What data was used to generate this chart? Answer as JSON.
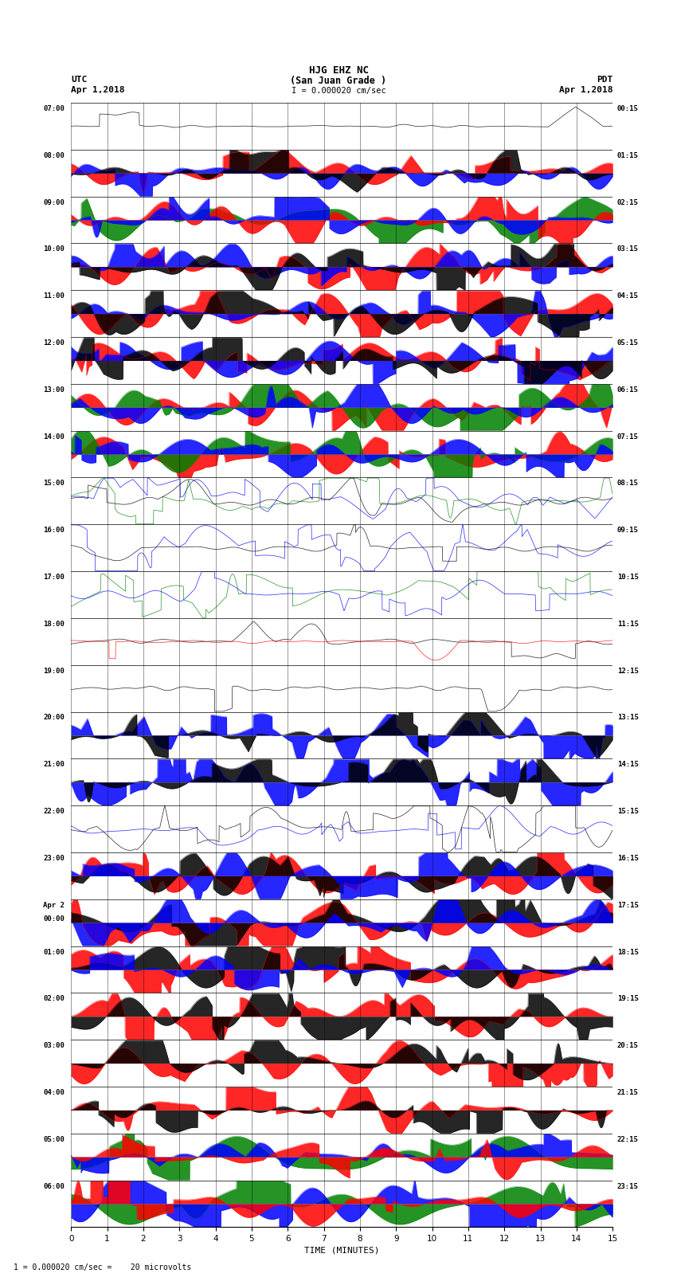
{
  "title_line1": "HJG EHZ NC",
  "title_line2": "(San Juan Grade )",
  "title_line3": "I = 0.000020 cm/sec",
  "left_label": "UTC",
  "left_date": "Apr 1,2018",
  "right_label": "PDT",
  "right_date": "Apr 1,2018",
  "left_times": [
    "07:00",
    "08:00",
    "09:00",
    "10:00",
    "11:00",
    "12:00",
    "13:00",
    "14:00",
    "15:00",
    "16:00",
    "17:00",
    "18:00",
    "19:00",
    "20:00",
    "21:00",
    "22:00",
    "23:00",
    "Apr 2\n00:00",
    "01:00",
    "02:00",
    "03:00",
    "04:00",
    "05:00",
    "06:00"
  ],
  "right_times": [
    "00:15",
    "01:15",
    "02:15",
    "03:15",
    "04:15",
    "05:15",
    "06:15",
    "07:15",
    "08:15",
    "09:15",
    "10:15",
    "11:15",
    "12:15",
    "13:15",
    "14:15",
    "15:15",
    "16:15",
    "17:15",
    "18:15",
    "19:15",
    "20:15",
    "21:15",
    "22:15",
    "23:15"
  ],
  "xlabel": "TIME (MINUTES)",
  "xticks": [
    0,
    1,
    2,
    3,
    4,
    5,
    6,
    7,
    8,
    9,
    10,
    11,
    12,
    13,
    14,
    15
  ],
  "xmin": 0,
  "xmax": 15,
  "n_rows": 24,
  "bottom_label": "1 = 0.000020 cm/sec =    20 microvolts",
  "bg_color": "#ffffff",
  "row_configs": [
    {
      "level": 0.08,
      "layers": [
        {
          "color": "#000000",
          "amp": 0.08,
          "freq": 8,
          "spikes": 2
        }
      ]
    },
    {
      "level": 0.9,
      "layers": [
        {
          "color": "#ff0000",
          "amp": 0.5,
          "freq": 3,
          "spikes": 5
        },
        {
          "color": "#0000ff",
          "amp": 0.7,
          "freq": 4,
          "spikes": 3
        },
        {
          "color": "#000000",
          "amp": 0.3,
          "freq": 6,
          "spikes": 4
        }
      ]
    },
    {
      "level": 0.95,
      "layers": [
        {
          "color": "#008000",
          "amp": 0.9,
          "freq": 2,
          "spikes": 8
        },
        {
          "color": "#ff0000",
          "amp": 0.8,
          "freq": 3,
          "spikes": 6
        },
        {
          "color": "#0000ff",
          "amp": 0.6,
          "freq": 5,
          "spikes": 5
        }
      ]
    },
    {
      "level": 0.9,
      "layers": [
        {
          "color": "#ff0000",
          "amp": 0.85,
          "freq": 2,
          "spikes": 10
        },
        {
          "color": "#0000ff",
          "amp": 0.7,
          "freq": 3,
          "spikes": 8
        },
        {
          "color": "#000000",
          "amp": 0.6,
          "freq": 4,
          "spikes": 6
        }
      ]
    },
    {
      "level": 0.95,
      "layers": [
        {
          "color": "#ff0000",
          "amp": 0.9,
          "freq": 2,
          "spikes": 10
        },
        {
          "color": "#0000ff",
          "amp": 0.8,
          "freq": 3,
          "spikes": 8
        },
        {
          "color": "#000000",
          "amp": 0.9,
          "freq": 2,
          "spikes": 12
        }
      ]
    },
    {
      "level": 0.95,
      "layers": [
        {
          "color": "#ff0000",
          "amp": 0.9,
          "freq": 2,
          "spikes": 10
        },
        {
          "color": "#0000ff",
          "amp": 0.85,
          "freq": 2,
          "spikes": 10
        },
        {
          "color": "#000000",
          "amp": 0.8,
          "freq": 3,
          "spikes": 8
        }
      ]
    },
    {
      "level": 0.9,
      "layers": [
        {
          "color": "#ff0000",
          "amp": 0.8,
          "freq": 2,
          "spikes": 8
        },
        {
          "color": "#008000",
          "amp": 0.85,
          "freq": 2,
          "spikes": 8
        },
        {
          "color": "#0000ff",
          "amp": 0.7,
          "freq": 3,
          "spikes": 6
        }
      ]
    },
    {
      "level": 0.9,
      "layers": [
        {
          "color": "#ff0000",
          "amp": 0.75,
          "freq": 2,
          "spikes": 8
        },
        {
          "color": "#008000",
          "amp": 0.8,
          "freq": 2,
          "spikes": 8
        },
        {
          "color": "#0000ff",
          "amp": 0.65,
          "freq": 3,
          "spikes": 6
        }
      ]
    },
    {
      "level": 0.5,
      "layers": [
        {
          "color": "#0000ff",
          "amp": 0.5,
          "freq": 3,
          "spikes": 15
        },
        {
          "color": "#008000",
          "amp": 0.4,
          "freq": 4,
          "spikes": 12
        },
        {
          "color": "#000000",
          "amp": 0.2,
          "freq": 5,
          "spikes": 5
        }
      ]
    },
    {
      "level": 0.4,
      "layers": [
        {
          "color": "#0000ff",
          "amp": 0.4,
          "freq": 3,
          "spikes": 20
        },
        {
          "color": "#000000",
          "amp": 0.15,
          "freq": 6,
          "spikes": 4
        }
      ]
    },
    {
      "level": 0.5,
      "layers": [
        {
          "color": "#008000",
          "amp": 0.5,
          "freq": 2,
          "spikes": 15
        },
        {
          "color": "#0000ff",
          "amp": 0.3,
          "freq": 4,
          "spikes": 8
        }
      ]
    },
    {
      "level": 0.15,
      "layers": [
        {
          "color": "#000000",
          "amp": 0.12,
          "freq": 8,
          "spikes": 3
        },
        {
          "color": "#ff0000",
          "amp": 0.08,
          "freq": 6,
          "spikes": 2
        }
      ]
    },
    {
      "level": 0.15,
      "layers": [
        {
          "color": "#000000",
          "amp": 0.1,
          "freq": 8,
          "spikes": 3
        }
      ]
    },
    {
      "level": 0.6,
      "layers": [
        {
          "color": "#0000ff",
          "amp": 0.6,
          "freq": 2,
          "spikes": 20
        },
        {
          "color": "#000000",
          "amp": 0.3,
          "freq": 4,
          "spikes": 8
        }
      ]
    },
    {
      "level": 0.7,
      "layers": [
        {
          "color": "#0000ff",
          "amp": 0.7,
          "freq": 2,
          "spikes": 25
        },
        {
          "color": "#000000",
          "amp": 0.4,
          "freq": 3,
          "spikes": 10
        }
      ]
    },
    {
      "level": 0.5,
      "layers": [
        {
          "color": "#000000",
          "amp": 0.5,
          "freq": 3,
          "spikes": 20
        },
        {
          "color": "#0000ff",
          "amp": 0.3,
          "freq": 4,
          "spikes": 8
        }
      ]
    },
    {
      "level": 0.95,
      "layers": [
        {
          "color": "#ff0000",
          "amp": 0.9,
          "freq": 2,
          "spikes": 10
        },
        {
          "color": "#000000",
          "amp": 0.85,
          "freq": 2,
          "spikes": 12
        },
        {
          "color": "#0000ff",
          "amp": 0.7,
          "freq": 3,
          "spikes": 8
        }
      ]
    },
    {
      "level": 0.95,
      "layers": [
        {
          "color": "#ff0000",
          "amp": 0.9,
          "freq": 2,
          "spikes": 10
        },
        {
          "color": "#000000",
          "amp": 0.9,
          "freq": 2,
          "spikes": 12
        },
        {
          "color": "#0000ff",
          "amp": 0.7,
          "freq": 3,
          "spikes": 8
        }
      ]
    },
    {
      "level": 0.9,
      "layers": [
        {
          "color": "#ff0000",
          "amp": 0.85,
          "freq": 2,
          "spikes": 10
        },
        {
          "color": "#000000",
          "amp": 0.8,
          "freq": 2,
          "spikes": 10
        },
        {
          "color": "#0000ff",
          "amp": 0.6,
          "freq": 3,
          "spikes": 6
        }
      ]
    },
    {
      "level": 0.9,
      "layers": [
        {
          "color": "#ff0000",
          "amp": 0.9,
          "freq": 2,
          "spikes": 10
        },
        {
          "color": "#000000",
          "amp": 0.85,
          "freq": 2,
          "spikes": 12
        }
      ]
    },
    {
      "level": 0.9,
      "layers": [
        {
          "color": "#ff0000",
          "amp": 0.9,
          "freq": 2,
          "spikes": 10
        },
        {
          "color": "#000000",
          "amp": 0.85,
          "freq": 2,
          "spikes": 10
        }
      ]
    },
    {
      "level": 0.6,
      "layers": [
        {
          "color": "#ff0000",
          "amp": 0.5,
          "freq": 3,
          "spikes": 8
        },
        {
          "color": "#000000",
          "amp": 0.4,
          "freq": 4,
          "spikes": 6
        }
      ]
    },
    {
      "level": 0.95,
      "layers": [
        {
          "color": "#008000",
          "amp": 0.9,
          "freq": 1,
          "spikes": 5
        },
        {
          "color": "#0000ff",
          "amp": 0.7,
          "freq": 2,
          "spikes": 8
        },
        {
          "color": "#ff0000",
          "amp": 0.5,
          "freq": 3,
          "spikes": 6
        }
      ]
    },
    {
      "level": 0.95,
      "layers": [
        {
          "color": "#008000",
          "amp": 0.9,
          "freq": 1,
          "spikes": 5
        },
        {
          "color": "#0000ff",
          "amp": 0.8,
          "freq": 2,
          "spikes": 8
        },
        {
          "color": "#ff0000",
          "amp": 0.6,
          "freq": 3,
          "spikes": 6
        }
      ]
    }
  ]
}
